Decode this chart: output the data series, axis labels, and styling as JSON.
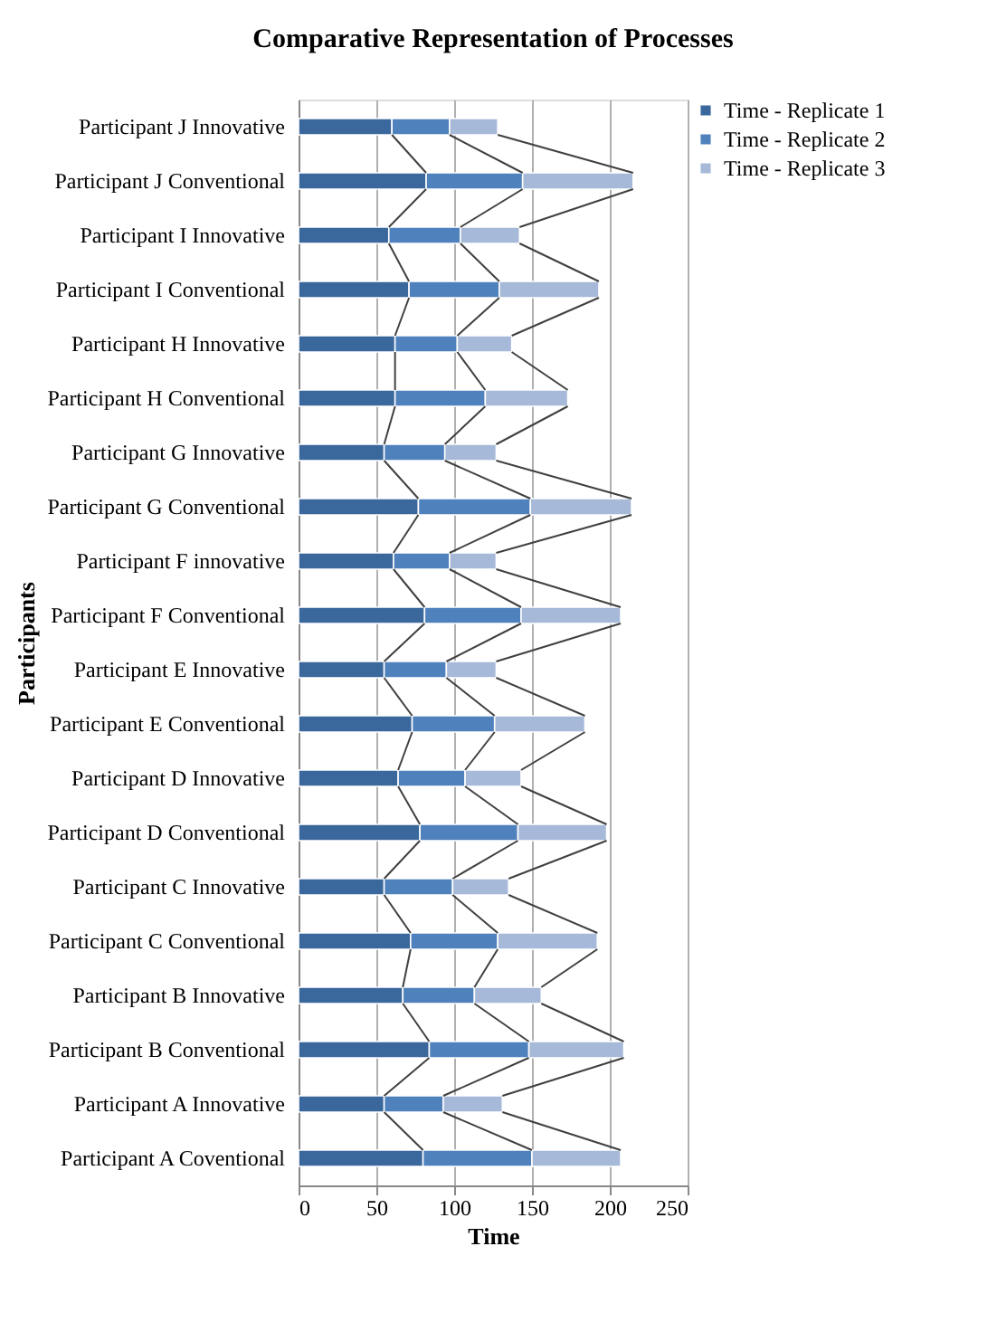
{
  "chart_data": {
    "type": "bar",
    "orientation": "horizontal",
    "stacked": true,
    "title": "Comparative Representation of Processes",
    "xlabel": "Time",
    "ylabel": "Participants",
    "categories": [
      "Participant J Innovative",
      "Participant J Conventional",
      "Participant I Innovative",
      "Participant I Conventional",
      "Participant H Innovative",
      "Participant H Conventional",
      "Participant G Innovative",
      "Participant G Conventional",
      "Participant F innovative",
      "Participant F Conventional",
      "Participant E Innovative",
      "Participant E Conventional",
      "Participant D Innovative",
      "Participant D Conventional",
      "Participant C Innovative",
      "Participant C Conventional",
      "Participant B Innovative",
      "Participant B Conventional",
      "Participant A Innovative",
      "Participant A Coventional"
    ],
    "series": [
      {
        "name": "Time - Replicate 1",
        "color": "#3a679c",
        "values": [
          60,
          82,
          58,
          71,
          62,
          62,
          55,
          77,
          61,
          81,
          55,
          73,
          64,
          78,
          55,
          72,
          67,
          84,
          55,
          80
        ]
      },
      {
        "name": "Time - Replicate 2",
        "color": "#4f81bd",
        "values": [
          37,
          62,
          46,
          58,
          40,
          58,
          39,
          72,
          36,
          62,
          40,
          53,
          43,
          63,
          44,
          56,
          46,
          64,
          38,
          70
        ]
      },
      {
        "name": "Time - Replicate 3",
        "color": "#a6b9d8",
        "values": [
          31,
          71,
          38,
          64,
          35,
          53,
          33,
          65,
          30,
          64,
          32,
          58,
          36,
          57,
          36,
          64,
          43,
          61,
          38,
          57
        ]
      }
    ],
    "xlim": [
      0,
      250
    ],
    "xticks": [
      0,
      50,
      100,
      150,
      200,
      250
    ],
    "grid": "x",
    "legend": "right"
  }
}
